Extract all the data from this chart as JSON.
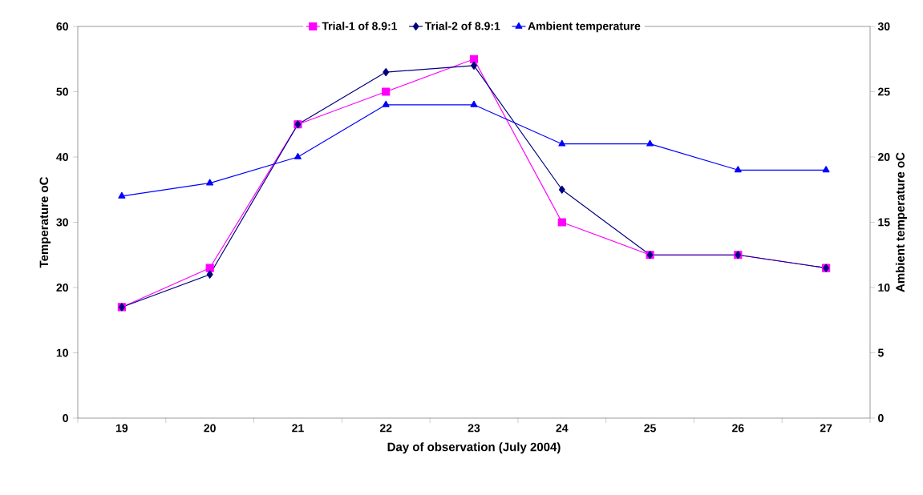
{
  "chart_data": {
    "type": "line",
    "xlabel": "Day of observation (July 2004)",
    "ylabel": "Temperature oC",
    "y2label": "Ambient temperature oC",
    "categories": [
      "19",
      "20",
      "21",
      "22",
      "23",
      "24",
      "25",
      "26",
      "27"
    ],
    "series": [
      {
        "name": "Trial-1 of 8.9:1",
        "color": "#ff00ff",
        "marker": "square",
        "values": [
          17,
          23,
          45,
          50,
          55,
          30,
          25,
          25,
          23
        ]
      },
      {
        "name": "Trial-2 of 8.9:1",
        "color": "#000080",
        "marker": "diamond",
        "values": [
          17,
          22,
          45,
          53,
          54,
          35,
          25,
          25,
          23
        ]
      },
      {
        "name": "Ambient temperature",
        "color": "#0000ff",
        "marker": "triangle",
        "axis": "y2",
        "values": [
          17,
          18,
          20,
          24,
          24,
          21,
          21,
          19,
          19
        ]
      }
    ],
    "ylim": [
      0,
      60
    ],
    "yticks": [
      0,
      10,
      20,
      30,
      40,
      50,
      60
    ],
    "y2lim": [
      0,
      30
    ],
    "y2ticks": [
      0,
      5,
      10,
      15,
      20,
      25,
      30
    ],
    "grid": false,
    "legend": "top",
    "line_style": "solid"
  }
}
